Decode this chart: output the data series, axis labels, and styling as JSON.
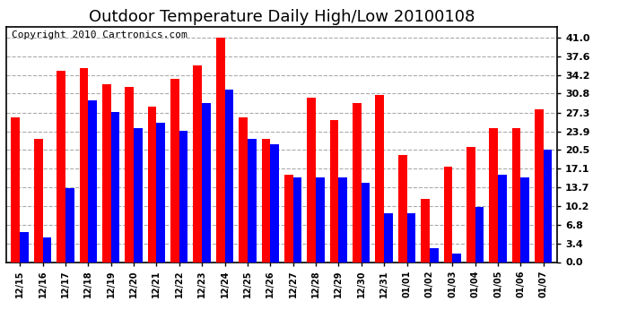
{
  "title": "Outdoor Temperature Daily High/Low 20100108",
  "copyright": "Copyright 2010 Cartronics.com",
  "dates": [
    "12/15",
    "12/16",
    "12/17",
    "12/18",
    "12/19",
    "12/20",
    "12/21",
    "12/22",
    "12/23",
    "12/24",
    "12/25",
    "12/26",
    "12/27",
    "12/28",
    "12/29",
    "12/30",
    "12/31",
    "01/01",
    "01/02",
    "01/03",
    "01/04",
    "01/05",
    "01/06",
    "01/07"
  ],
  "high": [
    26.5,
    22.5,
    35.0,
    35.5,
    32.5,
    32.0,
    28.5,
    33.5,
    36.0,
    41.0,
    26.5,
    22.5,
    16.0,
    30.0,
    26.0,
    29.0,
    30.5,
    19.5,
    11.5,
    17.5,
    21.0,
    24.5,
    24.5,
    28.0
  ],
  "low": [
    5.5,
    4.5,
    13.5,
    29.5,
    27.5,
    24.5,
    25.5,
    24.0,
    29.0,
    31.5,
    22.5,
    21.5,
    15.5,
    15.5,
    15.5,
    14.5,
    9.0,
    9.0,
    2.5,
    1.5,
    10.0,
    16.0,
    15.5,
    20.5
  ],
  "high_color": "#ff0000",
  "low_color": "#0000ff",
  "bg_color": "#ffffff",
  "plot_bg_color": "#ffffff",
  "grid_color": "#aaaaaa",
  "yticks": [
    0.0,
    3.4,
    6.8,
    10.2,
    13.7,
    17.1,
    20.5,
    23.9,
    27.3,
    30.8,
    34.2,
    37.6,
    41.0
  ],
  "ylim": [
    0.0,
    43.0
  ],
  "title_fontsize": 13,
  "copyright_fontsize": 8,
  "bar_width": 0.38
}
